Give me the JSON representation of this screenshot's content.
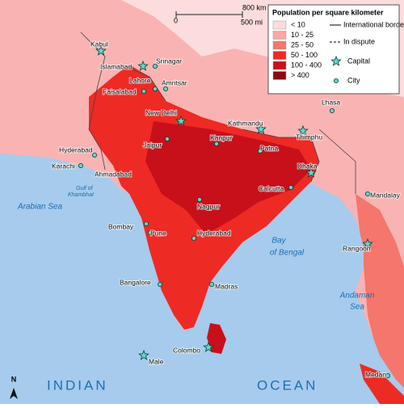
{
  "legend": {
    "title": "Population per square kilometer",
    "classes": [
      {
        "label": "< 10",
        "color": "#fcdcdc"
      },
      {
        "label": "10 - 25",
        "color": "#f9a7a7"
      },
      {
        "label": "25 - 50",
        "color": "#f5766c"
      },
      {
        "label": "50 - 100",
        "color": "#ee2a24"
      },
      {
        "label": "100 - 400",
        "color": "#c8101a"
      },
      {
        "label": "> 400",
        "color": "#8b0a10"
      }
    ],
    "border": "International border",
    "dispute": "In dispute",
    "capital": "Capital",
    "city": "City"
  },
  "scale": {
    "zero": "0",
    "km": "800 km",
    "mi": "500 mi"
  },
  "north": "N",
  "capitals": [
    "Kabul",
    "Islamabad",
    "New Delhi",
    "Kathmandu",
    "Thimphu",
    "Dhaka",
    "Rangoon",
    "Colombo",
    "Male"
  ],
  "cities": [
    "Srinagar",
    "Lahore",
    "Amritsar",
    "Faisalabad",
    "Hyderabad",
    "Karachi",
    "Jaipur",
    "Kanpur",
    "Patna",
    "Ahmadabad",
    "Calcutta",
    "Nagpur",
    "Bombay",
    "Pune",
    "Hyderabad",
    "Bangalore",
    "Madras",
    "Lhasa",
    "Mandalay",
    "Medan"
  ],
  "water": {
    "arabian": "Arabian Sea",
    "gulf1": "Gulf of",
    "gulf2": "Khambhat",
    "bay1": "Bay",
    "bay2": "of Bengal",
    "andaman1": "Andaman",
    "andaman2": "Sea",
    "indian": "INDIAN",
    "ocean": "OCEAN"
  }
}
